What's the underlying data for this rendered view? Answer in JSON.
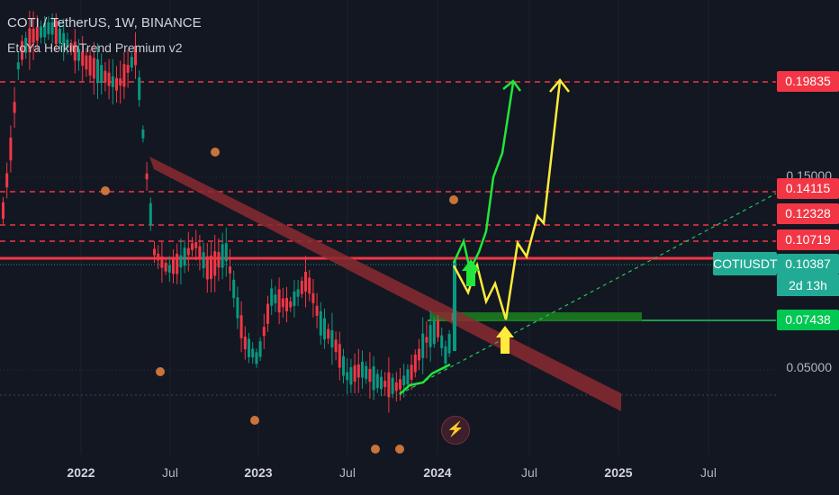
{
  "header": {
    "title": "COTI / TetherUS, 1W, BINANCE",
    "indicator": "EtoYa HeikinTrend Premium v2"
  },
  "colors": {
    "background": "#131722",
    "bull": "#089981",
    "bear": "#f23645",
    "level_line": "#f23645",
    "green_arrow": "#22e63a",
    "yellow_arrow": "#ffeb3b",
    "trend_band": "#8b2a30"
  },
  "price_labels": {
    "l1": "0.19835",
    "l2": "0.14115",
    "l3": "0.12328",
    "l4": "0.10719",
    "current": "0.10387",
    "support": "0.07438"
  },
  "symbol_tag": "COTIUSDT",
  "countdown": "2d 13h",
  "y_ticks": [
    "0.15000",
    "0.05000"
  ],
  "x_ticks": [
    "2022",
    "Jul",
    "2023",
    "Jul",
    "2024",
    "Jul",
    "2025",
    "Jul"
  ],
  "icons": [
    "bolt-icon",
    "pumpkin-event-icon",
    "up-arrow-icon"
  ]
}
